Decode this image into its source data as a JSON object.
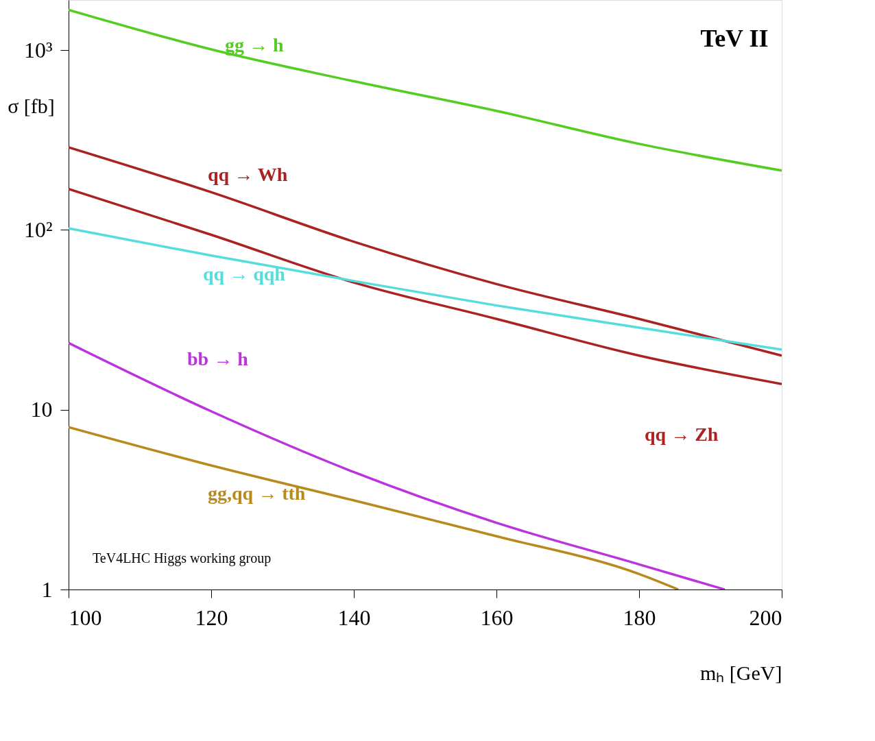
{
  "chart_data": {
    "type": "line",
    "title": "TeV II",
    "xlabel": "mₕ [GeV]",
    "ylabel": "σ [fb]",
    "x": [
      100,
      120,
      140,
      160,
      180,
      200
    ],
    "series": [
      {
        "name": "gg → h",
        "color": "#55cc22",
        "values": [
          1675,
          1010,
          671,
          459,
          301,
          214
        ]
      },
      {
        "name": "qq → Wh",
        "color": "#aa2222",
        "values": [
          288,
          162,
          86,
          50,
          32,
          20
        ]
      },
      {
        "name": "qq → Zh",
        "color": "#aa2222",
        "values": [
          169,
          94,
          51,
          32,
          20,
          13.9
        ]
      },
      {
        "name": "qq → qqh",
        "color": "#55dddd",
        "values": [
          102,
          72,
          52,
          38,
          28.6,
          21.6
        ]
      },
      {
        "name": "bb → h",
        "color": "#bb33dd",
        "x": [
          100,
          120,
          140,
          160,
          180,
          192
        ],
        "values": [
          23.5,
          9.8,
          4.5,
          2.35,
          1.38,
          1
        ]
      },
      {
        "name": "gg,qq → tth",
        "color": "#b88a1e",
        "x": [
          100,
          120,
          140,
          160,
          180,
          185.5
        ],
        "values": [
          8.0,
          4.9,
          3.13,
          1.98,
          1.22,
          1
        ]
      }
    ],
    "xlim": [
      100,
      200
    ],
    "xticks": [
      100,
      120,
      140,
      160,
      180,
      200
    ],
    "ylim": [
      1,
      1900
    ],
    "yticks": [
      1,
      10,
      {
        "value": 100,
        "label": "10²"
      },
      {
        "value": 1000,
        "label": "10³"
      }
    ],
    "log": "y",
    "grid": false,
    "legend": false,
    "line_style": "solid",
    "marker": "none",
    "annotations": [
      "TeV4LHC Higgs working group"
    ]
  }
}
